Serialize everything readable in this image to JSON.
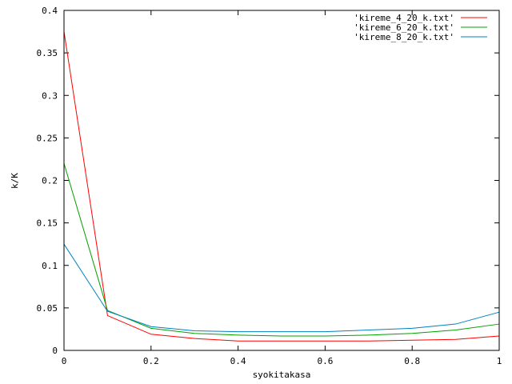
{
  "chart_data": {
    "type": "line",
    "title": "",
    "xlabel": "syokitakasa",
    "ylabel": "k/K",
    "xlim": [
      0,
      1
    ],
    "ylim": [
      0,
      0.4
    ],
    "grid": false,
    "legend_position": "top-right",
    "x_ticks": [
      "0",
      "0.2",
      "0.4",
      "0.6",
      "0.8",
      "1"
    ],
    "x_tick_values": [
      0,
      0.2,
      0.4,
      0.6,
      0.8,
      1
    ],
    "y_ticks": [
      "0",
      "0.05",
      "0.1",
      "0.15",
      "0.2",
      "0.25",
      "0.3",
      "0.35",
      "0.4"
    ],
    "y_tick_values": [
      0,
      0.05,
      0.1,
      0.15,
      0.2,
      0.25,
      0.3,
      0.35,
      0.4
    ],
    "x": [
      0,
      0.1,
      0.2,
      0.3,
      0.4,
      0.5,
      0.6,
      0.7,
      0.8,
      0.9,
      1.0
    ],
    "series": [
      {
        "name": "'kireme_4_20_k.txt'",
        "color": "#ff0000",
        "values": [
          0.375,
          0.041,
          0.019,
          0.014,
          0.011,
          0.011,
          0.011,
          0.011,
          0.012,
          0.013,
          0.017
        ]
      },
      {
        "name": "'kireme_6_20_k.txt'",
        "color": "#00a000",
        "values": [
          0.22,
          0.047,
          0.026,
          0.02,
          0.018,
          0.017,
          0.017,
          0.018,
          0.02,
          0.024,
          0.031
        ]
      },
      {
        "name": "'kireme_8_20_k.txt'",
        "color": "#0080c0",
        "values": [
          0.125,
          0.046,
          0.028,
          0.023,
          0.022,
          0.022,
          0.022,
          0.024,
          0.026,
          0.031,
          0.045
        ]
      }
    ]
  }
}
